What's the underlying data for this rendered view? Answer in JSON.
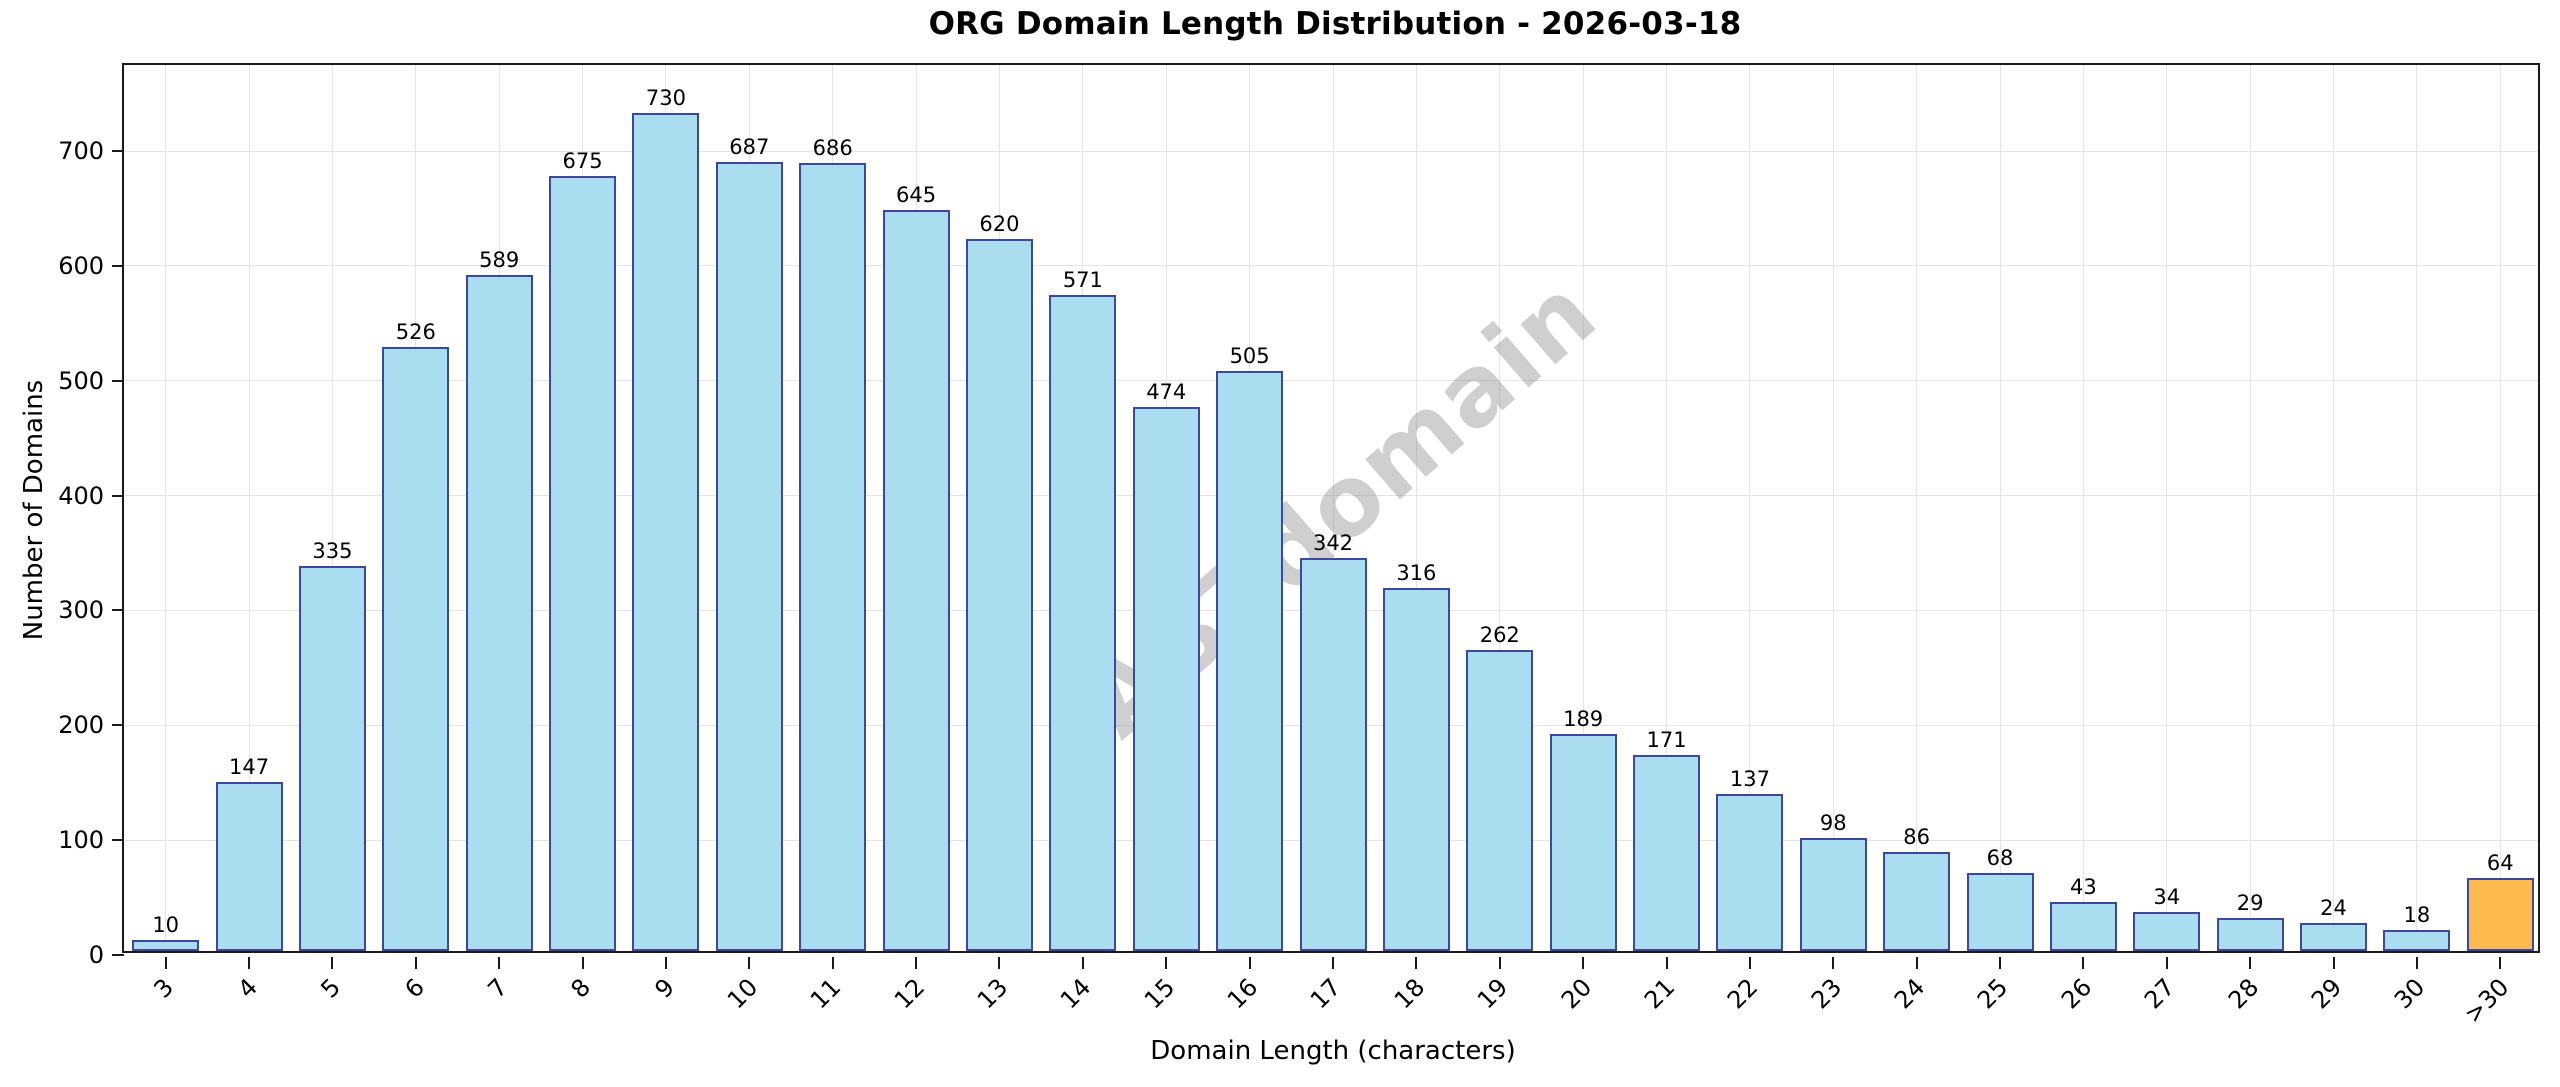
{
  "figure": {
    "title": "ORG Domain Length Distribution - 2026-03-18",
    "watermark": "ABTdomain"
  },
  "chart_data": {
    "type": "bar",
    "title": "ORG Domain Length Distribution - 2026-03-18",
    "xlabel": "Domain Length (characters)",
    "ylabel": "Number of Domains",
    "categories": [
      "3",
      "4",
      "5",
      "6",
      "7",
      "8",
      "9",
      "10",
      "11",
      "12",
      "13",
      "14",
      "15",
      "16",
      "17",
      "18",
      "19",
      "20",
      "21",
      "22",
      "23",
      "24",
      "25",
      "26",
      "27",
      "28",
      "29",
      "30",
      ">30"
    ],
    "values": [
      10,
      147,
      335,
      526,
      589,
      675,
      730,
      687,
      686,
      645,
      620,
      571,
      474,
      505,
      342,
      316,
      262,
      189,
      171,
      137,
      98,
      86,
      68,
      43,
      34,
      29,
      24,
      18,
      64
    ],
    "bar_labels": [
      "10",
      "147",
      "335",
      "526",
      "589",
      "675",
      "730",
      "687",
      "686",
      "645",
      "620",
      "571",
      "474",
      "505",
      "342",
      "316",
      "262",
      "189",
      "171",
      "137",
      "98",
      "86",
      "68",
      "43",
      "34",
      "29",
      "24",
      "18",
      "64"
    ],
    "yticks": [
      0,
      100,
      200,
      300,
      400,
      500,
      600,
      700
    ],
    "ylim": [
      0,
      775
    ],
    "grid": true,
    "legend": "none",
    "watermark": "ABTdomain",
    "highlight_index": 28,
    "colors": {
      "bar_fill": "#abddf1",
      "bar_edge": "#3f46a0",
      "highlight_fill": "#fcbb4c",
      "highlight_edge": "#3f46a0",
      "grid": "#e4e4e4",
      "frame": "#1a1a1a",
      "text": "#000000",
      "watermark": "rgba(128,128,128,0.38)"
    }
  }
}
